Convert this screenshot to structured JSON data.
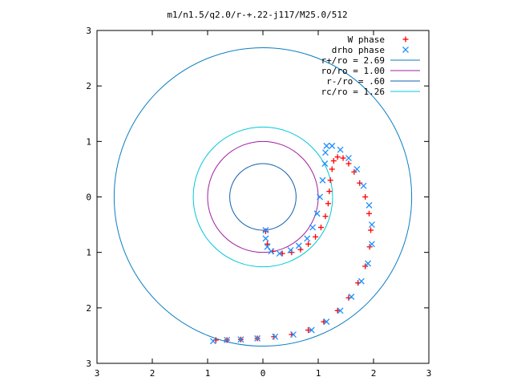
{
  "chart_data": {
    "type": "scatter",
    "title": "m1/n1.5/q2.0/r-+.22-j117/M25.0/512",
    "xlim": [
      -3,
      3
    ],
    "ylim": [
      -3,
      3
    ],
    "x_ticks": [
      "3",
      "2",
      "1",
      "0",
      "1",
      "2",
      "3"
    ],
    "y_ticks": [
      "3",
      "2",
      "1",
      "0",
      "1",
      "2",
      "3"
    ],
    "grid": false,
    "legend_position": "top-right",
    "series": [
      {
        "name": "W phase",
        "kind": "points",
        "marker": "+",
        "color": "#ff0000",
        "points": [
          [
            0.05,
            -0.62
          ],
          [
            0.08,
            -0.85
          ],
          [
            0.18,
            -0.98
          ],
          [
            0.35,
            -1.02
          ],
          [
            0.52,
            -1.0
          ],
          [
            0.68,
            -0.95
          ],
          [
            0.82,
            -0.85
          ],
          [
            0.95,
            -0.72
          ],
          [
            1.05,
            -0.55
          ],
          [
            1.13,
            -0.35
          ],
          [
            1.18,
            -0.12
          ],
          [
            1.2,
            0.1
          ],
          [
            1.22,
            0.3
          ],
          [
            1.25,
            0.5
          ],
          [
            1.28,
            0.65
          ],
          [
            1.35,
            0.72
          ],
          [
            1.45,
            0.7
          ],
          [
            1.55,
            0.6
          ],
          [
            1.65,
            0.45
          ],
          [
            1.75,
            0.25
          ],
          [
            1.85,
            0.0
          ],
          [
            1.92,
            -0.3
          ],
          [
            1.95,
            -0.6
          ],
          [
            1.93,
            -0.9
          ],
          [
            1.85,
            -1.25
          ],
          [
            1.72,
            -1.55
          ],
          [
            1.55,
            -1.82
          ],
          [
            1.35,
            -2.05
          ],
          [
            1.1,
            -2.25
          ],
          [
            0.82,
            -2.4
          ],
          [
            0.52,
            -2.48
          ],
          [
            0.2,
            -2.52
          ],
          [
            -0.1,
            -2.55
          ],
          [
            -0.4,
            -2.57
          ],
          [
            -0.65,
            -2.58
          ],
          [
            -0.85,
            -2.58
          ]
        ]
      },
      {
        "name": "drho phase",
        "kind": "points",
        "marker": "x",
        "color": "#1e90ff",
        "points": [
          [
            0.05,
            -0.6
          ],
          [
            0.05,
            -0.75
          ],
          [
            0.08,
            -0.9
          ],
          [
            0.15,
            -0.98
          ],
          [
            0.3,
            -1.02
          ],
          [
            0.5,
            -0.96
          ],
          [
            0.65,
            -0.88
          ],
          [
            0.8,
            -0.75
          ],
          [
            0.9,
            -0.55
          ],
          [
            0.98,
            -0.3
          ],
          [
            1.03,
            0.0
          ],
          [
            1.08,
            0.3
          ],
          [
            1.12,
            0.6
          ],
          [
            1.13,
            0.8
          ],
          [
            1.15,
            0.92
          ],
          [
            1.25,
            0.92
          ],
          [
            1.4,
            0.85
          ],
          [
            1.55,
            0.7
          ],
          [
            1.7,
            0.5
          ],
          [
            1.82,
            0.2
          ],
          [
            1.92,
            -0.15
          ],
          [
            1.97,
            -0.5
          ],
          [
            1.97,
            -0.85
          ],
          [
            1.9,
            -1.2
          ],
          [
            1.78,
            -1.52
          ],
          [
            1.6,
            -1.8
          ],
          [
            1.4,
            -2.05
          ],
          [
            1.15,
            -2.25
          ],
          [
            0.88,
            -2.4
          ],
          [
            0.55,
            -2.48
          ],
          [
            0.22,
            -2.52
          ],
          [
            -0.1,
            -2.55
          ],
          [
            -0.4,
            -2.57
          ],
          [
            -0.65,
            -2.58
          ],
          [
            -0.9,
            -2.6
          ]
        ]
      },
      {
        "name": "r+/ro = 2.69",
        "kind": "circle",
        "radius": 2.69,
        "color": "#0a7ec2"
      },
      {
        "name": "ro/ro = 1.00",
        "kind": "circle",
        "radius": 1.0,
        "color": "#a020a0"
      },
      {
        "name": "r-/ro = .60",
        "kind": "circle",
        "radius": 0.6,
        "color": "#1060b0"
      },
      {
        "name": "rc/ro = 1.26",
        "kind": "circle",
        "radius": 1.26,
        "color": "#00c8d8"
      }
    ]
  }
}
